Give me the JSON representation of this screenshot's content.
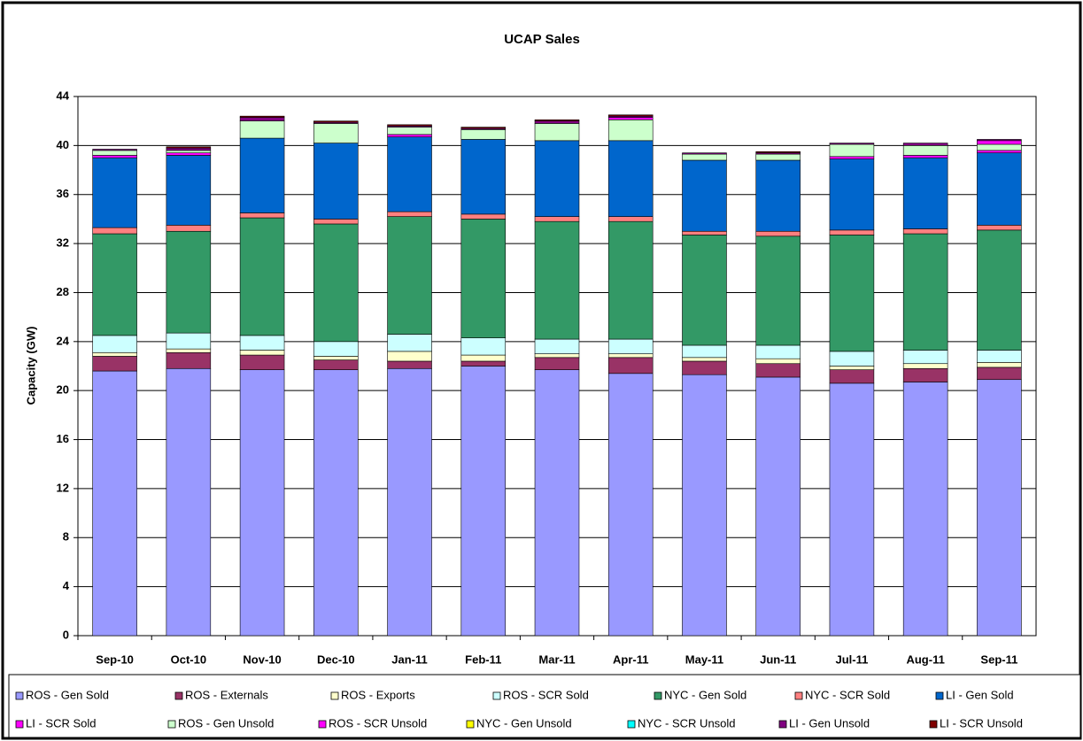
{
  "chart_data": {
    "type": "stacked_bar",
    "title": "UCAP Sales",
    "y_label": "Capacity (GW)",
    "categories": [
      "Sep-10",
      "Oct-10",
      "Nov-10",
      "Dec-10",
      "Jan-11",
      "Feb-11",
      "Mar-11",
      "Apr-11",
      "May-11",
      "Jun-11",
      "Jul-11",
      "Aug-11",
      "Sep-11"
    ],
    "ylim": [
      0,
      44
    ],
    "yticks": [
      0,
      4,
      8,
      12,
      16,
      20,
      24,
      28,
      32,
      36,
      40,
      44
    ],
    "grid": true,
    "legend": "bottom",
    "series": [
      {
        "name": "ROS - Gen Sold",
        "color": "#9999ff",
        "values": [
          21.6,
          21.8,
          21.7,
          21.7,
          21.8,
          22.0,
          21.7,
          21.4,
          21.3,
          21.1,
          20.6,
          20.7,
          20.9
        ]
      },
      {
        "name": "ROS - Externals",
        "color": "#993366",
        "values": [
          1.2,
          1.3,
          1.2,
          0.8,
          0.6,
          0.4,
          1.0,
          1.3,
          1.1,
          1.1,
          1.1,
          1.1,
          1.0
        ]
      },
      {
        "name": "ROS - Exports",
        "color": "#ffffcc",
        "values": [
          0.3,
          0.3,
          0.4,
          0.3,
          0.8,
          0.5,
          0.3,
          0.3,
          0.3,
          0.4,
          0.3,
          0.4,
          0.4
        ]
      },
      {
        "name": "ROS - SCR Sold",
        "color": "#ccffff",
        "values": [
          1.4,
          1.3,
          1.2,
          1.2,
          1.4,
          1.4,
          1.2,
          1.2,
          1.0,
          1.1,
          1.2,
          1.1,
          1.0
        ]
      },
      {
        "name": "NYC - Gen Sold",
        "color": "#339966",
        "values": [
          8.3,
          8.3,
          9.6,
          9.6,
          9.6,
          9.7,
          9.6,
          9.6,
          9.0,
          8.9,
          9.5,
          9.5,
          9.8
        ]
      },
      {
        "name": "NYC -  SCR Sold",
        "color": "#ff8080",
        "values": [
          0.5,
          0.5,
          0.4,
          0.4,
          0.4,
          0.4,
          0.4,
          0.4,
          0.3,
          0.4,
          0.4,
          0.4,
          0.4
        ]
      },
      {
        "name": "LI - Gen Sold",
        "color": "#0066cc",
        "values": [
          5.7,
          5.7,
          6.1,
          6.2,
          6.1,
          6.1,
          6.2,
          6.2,
          5.8,
          5.8,
          5.8,
          5.8,
          5.9
        ]
      },
      {
        "name": "LI - SCR Sold",
        "color": "#ff00ff",
        "values": [
          0.2,
          0.2,
          0,
          0,
          0.2,
          0,
          0,
          0,
          0,
          0,
          0.2,
          0.2,
          0.2
        ]
      },
      {
        "name": "ROS - Gen Unsold",
        "color": "#ccffcc",
        "values": [
          0.4,
          0.2,
          1.4,
          1.6,
          0.6,
          0.8,
          1.4,
          1.7,
          0.5,
          0.5,
          1.0,
          0.8,
          0.5
        ]
      },
      {
        "name": "ROS - SCR Unsold",
        "color": "#ff00ff",
        "values": [
          0,
          0,
          0,
          0,
          0,
          0,
          0,
          0.2,
          0,
          0,
          0,
          0,
          0.3
        ]
      },
      {
        "name": "NYC - Gen Unsold",
        "color": "#ffff00",
        "values": [
          0,
          0,
          0,
          0,
          0,
          0,
          0,
          0,
          0,
          0,
          0,
          0,
          0
        ]
      },
      {
        "name": "NYC - SCR Unsold",
        "color": "#00ffff",
        "values": [
          0,
          0,
          0,
          0,
          0,
          0,
          0,
          0,
          0,
          0,
          0,
          0,
          0
        ]
      },
      {
        "name": "LI - Gen Unsold",
        "color": "#800080",
        "values": [
          0.1,
          0.2,
          0.3,
          0.1,
          0.1,
          0.1,
          0.2,
          0.1,
          0.1,
          0.1,
          0.1,
          0.2,
          0.1
        ]
      },
      {
        "name": "LI - SCR Unsold",
        "color": "#800000",
        "values": [
          0,
          0.1,
          0.1,
          0.1,
          0.1,
          0.1,
          0.1,
          0.1,
          0,
          0.1,
          0,
          0,
          0
        ]
      }
    ]
  }
}
